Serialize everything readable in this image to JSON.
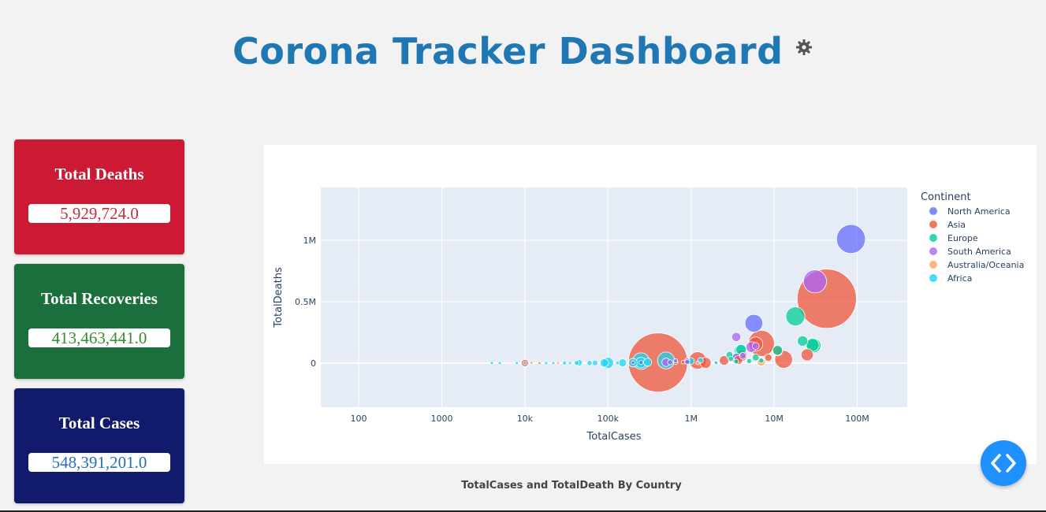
{
  "header": {
    "title": "Corona Tracker Dashboard",
    "icon": "gear-icon"
  },
  "cards": [
    {
      "label": "Total Deaths",
      "value": "5,929,724.0",
      "bg": "#cc1a35",
      "fg": "#c0303a"
    },
    {
      "label": "Total Recoveries",
      "value": "413,463,441.0",
      "bg": "#1a6f3c",
      "fg": "#3a8a3a"
    },
    {
      "label": "Total Cases",
      "value": "548,391,201.0",
      "bg": "#121a6b",
      "fg": "#2a6fb4"
    }
  ],
  "chart_caption": "TotalCases and TotalDeath By Country",
  "code_button_icon": "code-brackets-icon",
  "chart_data": {
    "type": "scatter",
    "xlabel": "TotalCases",
    "ylabel": "TotalDeaths",
    "xscale": "log",
    "xlim": [
      35,
      400000000
    ],
    "ylim": [
      -360000,
      1430000
    ],
    "x_ticks": [
      100,
      1000,
      10000,
      100000,
      1000000,
      10000000,
      100000000
    ],
    "x_tick_labels": [
      "100",
      "1000",
      "10k",
      "100k",
      "1M",
      "10M",
      "100M"
    ],
    "y_ticks": [
      0,
      500000,
      1000000
    ],
    "y_tick_labels": [
      "0",
      "0.5M",
      "1M"
    ],
    "grid": true,
    "legend_title": "Continent",
    "legend_position": "right",
    "series": [
      {
        "name": "North America",
        "color": "#636efa",
        "points": [
          [
            84000000,
            1010000,
            334
          ],
          [
            5700000,
            324000,
            128
          ],
          [
            3500000,
            38000,
            39
          ],
          [
            900000,
            8000,
            10
          ],
          [
            650000,
            8300,
            9
          ],
          [
            560000,
            6000,
            10
          ],
          [
            250000,
            4000,
            7
          ],
          [
            200000,
            3800,
            5
          ]
        ]
      },
      {
        "name": "Asia",
        "color": "#ef553b",
        "points": [
          [
            43000000,
            524000,
            1400
          ],
          [
            400000,
            4600,
            1400
          ],
          [
            7000000,
            160000,
            275
          ],
          [
            25000000,
            67000,
            60
          ],
          [
            13000000,
            30000,
            126
          ],
          [
            1200000,
            21000,
            120
          ],
          [
            2500000,
            21000,
            37
          ],
          [
            4000000,
            60000,
            58
          ],
          [
            3700000,
            24000,
            32
          ],
          [
            6000000,
            155000,
            80
          ],
          [
            11000000,
            98000,
            38
          ],
          [
            8500000,
            44000,
            22
          ],
          [
            1500000,
            1300,
            48
          ],
          [
            800000,
            7000,
            5
          ],
          [
            10000,
            120,
            20
          ]
        ]
      },
      {
        "name": "Europe",
        "color": "#00cc96",
        "points": [
          [
            18000000,
            380000,
            145
          ],
          [
            29000000,
            147000,
            67
          ],
          [
            22000000,
            180000,
            44
          ],
          [
            30000000,
            143000,
            83
          ],
          [
            11000000,
            104000,
            38
          ],
          [
            4000000,
            110000,
            43
          ],
          [
            6000000,
            45000,
            19
          ],
          [
            7000000,
            20000,
            10
          ],
          [
            3500000,
            13000,
            9
          ],
          [
            2900000,
            66000,
            19
          ],
          [
            3000000,
            34000,
            11
          ],
          [
            2000000,
            2300,
            5
          ],
          [
            5000000,
            16000,
            10
          ]
        ]
      },
      {
        "name": "South America",
        "color": "#ab63fa",
        "points": [
          [
            31000000,
            665000,
            214
          ],
          [
            5300000,
            130000,
            45
          ],
          [
            3500000,
            212000,
            33
          ],
          [
            6000000,
            139000,
            19
          ],
          [
            4200000,
            59000,
            18
          ],
          [
            900000,
            19000,
            11
          ],
          [
            650000,
            19000,
            7
          ],
          [
            500000,
            5700,
            28
          ]
        ]
      },
      {
        "name": "Australia/Oceania",
        "color": "#ffa15a",
        "points": [
          [
            7000000,
            8300,
            26
          ],
          [
            1200000,
            700,
            5
          ],
          [
            15000,
            200,
            1
          ],
          [
            12000,
            1500,
            1
          ],
          [
            25000,
            400,
            1
          ]
        ]
      },
      {
        "name": "Africa",
        "color": "#19d3f3",
        "points": [
          [
            3900000,
            100000,
            60
          ],
          [
            500000,
            21000,
            115
          ],
          [
            250000,
            16000,
            110
          ],
          [
            100000,
            1200,
            50
          ],
          [
            300000,
            6800,
            26
          ],
          [
            1000000,
            16000,
            18
          ],
          [
            1300000,
            22000,
            12
          ],
          [
            250000,
            3900,
            44
          ],
          [
            200000,
            3000,
            30
          ],
          [
            150000,
            1400,
            25
          ],
          [
            90000,
            1300,
            27
          ],
          [
            45000,
            1900,
            16
          ],
          [
            42000,
            900,
            9
          ],
          [
            30000,
            300,
            6
          ],
          [
            18000,
            190,
            3
          ],
          [
            22000,
            400,
            4
          ],
          [
            8000,
            80,
            1
          ],
          [
            10000,
            120,
            3
          ],
          [
            15000,
            50,
            2
          ],
          [
            60000,
            700,
            10
          ],
          [
            70000,
            1000,
            12
          ],
          [
            130000,
            1100,
            5
          ],
          [
            35000,
            600,
            4
          ],
          [
            5000,
            30,
            1
          ],
          [
            4000,
            20,
            1
          ]
        ]
      }
    ]
  }
}
